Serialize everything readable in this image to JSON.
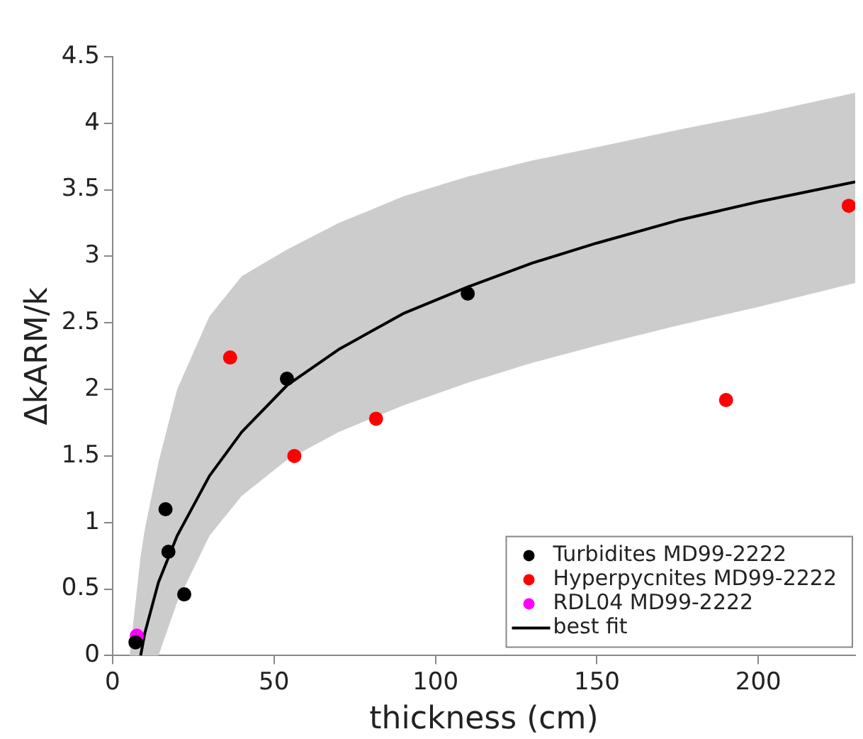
{
  "chart_data": {
    "type": "scatter",
    "xlabel": "thickness (cm)",
    "ylabel": "ΔkARM/k",
    "xlim": [
      0,
      230
    ],
    "xticks": [
      0,
      50,
      100,
      150,
      200
    ],
    "ylim": [
      0,
      4.5
    ],
    "yticks": [
      0,
      0.5,
      1,
      1.5,
      2,
      2.5,
      3,
      3.5,
      4,
      4.5
    ],
    "grid": false,
    "legend": "bottom right",
    "marker": "circle",
    "series": [
      {
        "name": "Turbidites MD99-2222",
        "color": "#000000",
        "x": [
          7.1,
          16.4,
          17.3,
          22.2,
          54,
          110
        ],
        "values": [
          0.1,
          1.1,
          0.78,
          0.46,
          2.08,
          2.72
        ]
      },
      {
        "name": "Hyperpycnites MD99-2222",
        "color": "#ff0000",
        "x": [
          36.4,
          56.3,
          81.6,
          190,
          228
        ],
        "values": [
          2.24,
          1.5,
          1.78,
          1.92,
          3.38
        ]
      },
      {
        "name": "RDL04 MD99-2222",
        "color": "#ff00ff",
        "x": [
          7.5
        ],
        "values": [
          0.15
        ]
      },
      {
        "name": "best fit",
        "type": "line",
        "color": "#000000",
        "marker": "none",
        "line_style": "solid",
        "x": [
          5.3,
          8.7,
          10,
          14.2,
          20,
          30,
          40,
          54,
          70,
          90,
          110,
          130,
          150,
          175,
          200,
          230
        ],
        "values": [
          null,
          0,
          0.17,
          0.55,
          0.9,
          1.35,
          1.68,
          2.03,
          2.3,
          2.57,
          2.77,
          2.95,
          3.1,
          3.27,
          3.41,
          3.56
        ],
        "lower": [
          0,
          0,
          0,
          0,
          0.4,
          0.9,
          1.2,
          1.47,
          1.68,
          1.88,
          2.05,
          2.2,
          2.33,
          2.48,
          2.62,
          2.8
        ],
        "upper": [
          0,
          0.75,
          0.95,
          1.45,
          2.0,
          2.55,
          2.85,
          3.05,
          3.25,
          3.45,
          3.6,
          3.72,
          3.82,
          3.95,
          4.07,
          4.23
        ]
      }
    ]
  }
}
